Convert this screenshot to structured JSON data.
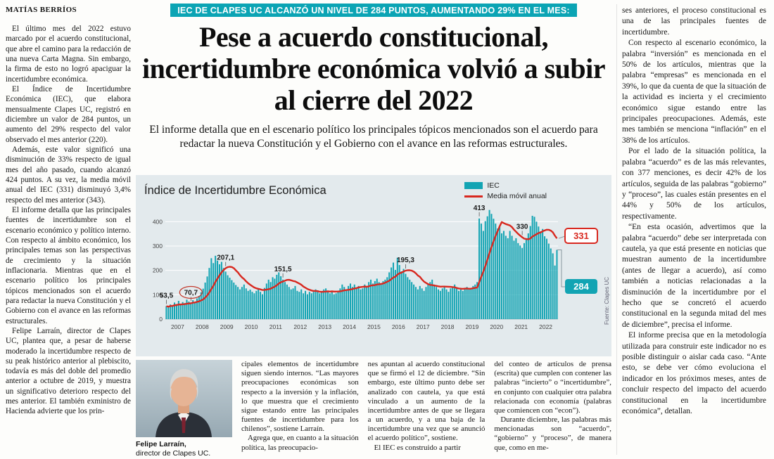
{
  "byline": "MATÍAS BERRÍOS",
  "kicker": "IEC DE CLAPES UC ALCANZÓ UN NIVEL DE 284 PUNTOS, AUMENTANDO 29% EN EL MES:",
  "headline": "Pese a acuerdo constitucional, incertidumbre económica volvió a subir al cierre del 2022",
  "deck": "El informe detalla que en el escenario político los principales tópicos mencionados son el acuerdo para redactar la nueva Constitución y el Gobierno con el avance en las reformas estructurales.",
  "colors": {
    "accent_teal": "#0ba4b4",
    "accent_red": "#d8281f",
    "chart_bg": "#e3eaed"
  },
  "photo": {
    "caption_name": "Felipe Larraín,",
    "caption_role": "director de Clapes UC."
  },
  "columns": {
    "col1": [
      "El último mes del 2022 estuvo marcado por el acuerdo constitucional, que abre el camino para la redacción de una nueva Carta Magna. Sin embargo, la firma de esto no logró apaciguar la incertidumbre económica.",
      "El Índice de Incertidumbre Económica (IEC), que elabora mensualmente Clapes UC, registró en diciembre un valor de 284 puntos, un aumento del 29% respecto del valor observado el mes anterior (220).",
      "Además, este valor significó una disminución de 33% respecto de igual mes del año pasado, cuando alcanzó 424 puntos. A su vez, la media móvil anual del IEC (331) disminuyó 3,4% respecto del mes anterior (343).",
      "El informe detalla que las principales fuentes de incertidumbre son el escenario económico y político interno. Con respecto al ámbito económico, los principales temas son las perspectivas de crecimiento y la situación inflacionaria. Mientras que en el escenario político los principales tópicos mencionados son el acuerdo para redactar la nueva Constitución y el Gobierno con el avance en las reformas estructurales.",
      "Felipe Larraín, director de Clapes UC, plantea que, a pesar de haberse moderado la incertidumbre respecto de su peak histórico anterior al plebiscito, todavía es más del doble del promedio anterior a octubre de 2019, y muestra un significativo deterioro respecto del mes anterior. El también exministro de Hacienda advierte que los prin-"
    ],
    "col3": [
      "cipales elementos de incertidumbre siguen siendo internos. “Las mayores preocupaciones económicas son respecto a la inversión y la inflación, lo que muestra que el crecimiento sigue estando entre las principales fuentes de incertidumbre para los chilenos”, sostiene Larraín.",
      "Agrega que, en cuanto a la situación política, las preocupacio-"
    ],
    "col4": [
      "nes apuntan al acuerdo constitucional que se firmó el 12 de diciembre. “Sin embargo, este último punto debe ser analizado con cautela, ya que está vinculado a un aumento de la incertidumbre antes de que se llegara a un acuerdo, y a una baja de la incertidumbre una vez que se anunció el acuerdo político”, sostiene.",
      "El IEC es construido a partir"
    ],
    "col5": [
      "del conteo de artículos de prensa (escrita) que cumplen con contener las palabras “incierto” o “incertidumbre”, en conjunto con cualquier otra palabra relacionada con economía (palabras que comiencen con “econ”).",
      "Durante diciembre, las palabras más mencionadas son “acuerdo”, “gobierno” y “proceso”, de manera que, como en me-"
    ],
    "col6": [
      "ses anteriores, el proceso constitucional es una de las principales fuentes de incertidumbre.",
      "Con respecto al escenario económico, la palabra “inversión” es mencionada en el 50% de los artículos, mientras que la palabra “empresas” es mencionada en el 39%, lo que da cuenta de que la situación de la actividad es incierta y el crecimiento económico sigue estando entre las principales preocupaciones. Además, este mes también se menciona “inflación” en el 38% de los artículos.",
      "Por el lado de la situación política, la palabra “acuerdo” es de las más relevantes, con 377 menciones, es decir 42% de los artículos, seguida de las palabras “gobierno” y “proceso”, las cuales están presentes en el 44% y 50% de los artículos, respectivamente.",
      "“En esta ocasión, advertimos que la palabra “acuerdo” debe ser interpretada con cautela, ya que está presente en noticias que muestran aumento de la incertidumbre (antes de llegar a acuerdo), así como también a noticias relacionadas a la disminución de la incertidumbre por el hecho que se concretó el acuerdo constitucional en la segunda mitad del mes de diciembre”, precisa el informe.",
      "El informe precisa que en la metodología utilizada para construir este indicador no es posible distinguir o aislar cada caso. “Ante esto, se debe ver cómo evoluciona el indicador en los próximos meses, antes de concluir respecto del impacto del acuerdo constitucional en la incertidumbre económica”, detallan."
    ]
  },
  "chart_data": {
    "type": "bar",
    "title": "Índice de Incertidumbre Económica",
    "legend": [
      {
        "label": "IEC",
        "type": "bar",
        "color": "#12a4b3"
      },
      {
        "label": "Media móvil anual",
        "type": "line",
        "color": "#d8281f"
      }
    ],
    "years": [
      "2007",
      "2008",
      "2009",
      "2010",
      "2011",
      "2012",
      "2013",
      "2014",
      "2015",
      "2016",
      "2017",
      "2018",
      "2019",
      "2020",
      "2021",
      "2022"
    ],
    "yticks": [
      0,
      100,
      200,
      300,
      400
    ],
    "ylim": [
      0,
      450
    ],
    "grid": true,
    "monthly_iec": [
      53.5,
      48,
      60,
      55,
      68,
      62,
      75,
      58,
      70,
      66,
      80,
      72,
      65,
      78,
      70,
      85,
      95,
      110,
      125,
      150,
      175,
      210,
      250,
      230,
      260,
      240,
      225,
      235,
      210,
      195,
      180,
      170,
      160,
      150,
      140,
      132,
      122,
      132,
      142,
      126,
      116,
      121,
      112,
      106,
      116,
      126,
      112,
      102,
      128,
      146,
      162,
      152,
      172,
      166,
      182,
      192,
      176,
      162,
      152,
      142,
      132,
      122,
      126,
      136,
      116,
      112,
      122,
      106,
      116,
      102,
      112,
      106,
      112,
      122,
      116,
      106,
      112,
      122,
      126,
      116,
      106,
      112,
      102,
      106,
      116,
      126,
      142,
      132,
      122,
      136,
      146,
      132,
      142,
      126,
      136,
      122,
      126,
      142,
      132,
      152,
      162,
      146,
      156,
      166,
      152,
      142,
      156,
      162,
      172,
      192,
      212,
      232,
      202,
      252,
      222,
      196,
      206,
      186,
      172,
      162,
      152,
      142,
      132,
      122,
      136,
      126,
      116,
      132,
      142,
      152,
      162,
      142,
      132,
      122,
      116,
      126,
      136,
      122,
      112,
      126,
      132,
      142,
      126,
      116,
      122,
      116,
      126,
      132,
      122,
      126,
      136,
      142,
      152,
      413,
      392,
      362,
      402,
      422,
      448,
      432,
      412,
      392,
      372,
      382,
      352,
      362,
      342,
      332,
      362,
      342,
      322,
      332,
      312,
      302,
      292,
      312,
      332,
      352,
      382,
      424,
      420,
      400,
      380,
      360,
      370,
      340,
      330,
      310,
      290,
      270,
      220,
      284
    ],
    "annotations": [
      {
        "label": "53,5",
        "month_index": 0,
        "circled": false
      },
      {
        "label": "70,7",
        "month_index": 12,
        "circled": true
      },
      {
        "label": "207,1",
        "month_index": 29,
        "circled": false
      },
      {
        "label": "151,5",
        "month_index": 57,
        "circled": false
      },
      {
        "label": "195,3",
        "month_index": 117,
        "circled": false
      },
      {
        "label": "413",
        "month_index": 153,
        "circled": false
      },
      {
        "label": "330",
        "month_index": 174,
        "circled": false
      }
    ],
    "callouts": [
      {
        "label": "331",
        "series": "Media móvil anual",
        "style": "outline",
        "color": "#d8281f"
      },
      {
        "label": "284",
        "series": "IEC",
        "style": "filled",
        "color": "#12a4b3"
      }
    ],
    "source": "Fuente: Clapes UC"
  }
}
